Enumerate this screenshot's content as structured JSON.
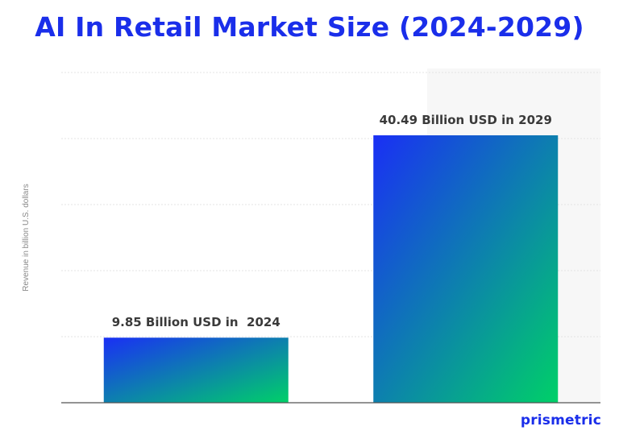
{
  "brand": {
    "logo_text": "prismetric",
    "colors": {
      "title": "#1a2eea",
      "bar_gradient_start": "#1a2ff5",
      "bar_gradient_end": "#00d068"
    }
  },
  "chart_data": {
    "type": "bar",
    "title": "AI In Retail Market Size (2024-2029)",
    "xlabel": "",
    "ylabel": "Revenue in billion U.S. dollars",
    "categories": [
      "2024",
      "2029"
    ],
    "values": [
      9.85,
      40.49
    ],
    "data_labels": [
      "9.85 Billion USD in  2024",
      "40.49 Billion USD in 2029"
    ],
    "ylim": [
      0,
      50
    ],
    "grid": true
  }
}
